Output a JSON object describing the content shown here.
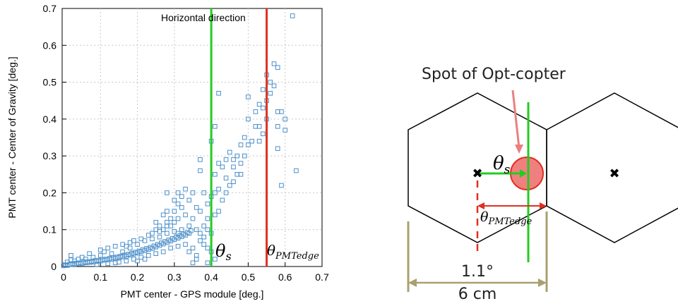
{
  "chart_data": {
    "type": "scatter",
    "title": "Horizontal direction",
    "xlabel": "PMT center - GPS module [deg.]",
    "ylabel": "PMT center - Center of Gravity [deg.]",
    "xlim": [
      -0.02,
      0.7
    ],
    "ylim": [
      0,
      0.7
    ],
    "xticks": [
      "0",
      "0.1",
      "0.2",
      "0.3",
      "0.4",
      "0.5",
      "0.6",
      "0.7"
    ],
    "yticks": [
      "0",
      "0.1",
      "0.2",
      "0.3",
      "0.4",
      "0.5",
      "0.6",
      "0.7"
    ],
    "grid": true,
    "marker": "open-square",
    "marker_color": "#4a8fc9",
    "vlines": [
      {
        "x": 0.4,
        "color": "#22cc22",
        "label": "θs"
      },
      {
        "x": 0.55,
        "color": "#e03020",
        "label": "θPMTedge"
      }
    ],
    "points": [
      [
        0.0,
        0.002
      ],
      [
        0.005,
        0.004
      ],
      [
        0.01,
        0.003
      ],
      [
        0.015,
        0.006
      ],
      [
        0.02,
        0.005
      ],
      [
        0.025,
        0.008
      ],
      [
        0.03,
        0.006
      ],
      [
        0.035,
        0.009
      ],
      [
        0.04,
        0.007
      ],
      [
        0.045,
        0.01
      ],
      [
        0.05,
        0.008
      ],
      [
        0.055,
        0.012
      ],
      [
        0.06,
        0.01
      ],
      [
        0.065,
        0.013
      ],
      [
        0.07,
        0.011
      ],
      [
        0.075,
        0.014
      ],
      [
        0.08,
        0.012
      ],
      [
        0.085,
        0.016
      ],
      [
        0.09,
        0.014
      ],
      [
        0.095,
        0.017
      ],
      [
        0.1,
        0.015
      ],
      [
        0.105,
        0.019
      ],
      [
        0.11,
        0.017
      ],
      [
        0.115,
        0.02
      ],
      [
        0.12,
        0.018
      ],
      [
        0.125,
        0.022
      ],
      [
        0.13,
        0.02
      ],
      [
        0.135,
        0.024
      ],
      [
        0.14,
        0.022
      ],
      [
        0.145,
        0.026
      ],
      [
        0.15,
        0.024
      ],
      [
        0.155,
        0.028
      ],
      [
        0.16,
        0.026
      ],
      [
        0.165,
        0.031
      ],
      [
        0.17,
        0.028
      ],
      [
        0.175,
        0.033
      ],
      [
        0.18,
        0.031
      ],
      [
        0.185,
        0.036
      ],
      [
        0.19,
        0.034
      ],
      [
        0.195,
        0.039
      ],
      [
        0.2,
        0.037
      ],
      [
        0.205,
        0.042
      ],
      [
        0.21,
        0.04
      ],
      [
        0.215,
        0.046
      ],
      [
        0.22,
        0.043
      ],
      [
        0.225,
        0.049
      ],
      [
        0.23,
        0.046
      ],
      [
        0.235,
        0.052
      ],
      [
        0.24,
        0.049
      ],
      [
        0.245,
        0.056
      ],
      [
        0.25,
        0.053
      ],
      [
        0.255,
        0.06
      ],
      [
        0.26,
        0.057
      ],
      [
        0.265,
        0.064
      ],
      [
        0.27,
        0.061
      ],
      [
        0.275,
        0.068
      ],
      [
        0.28,
        0.065
      ],
      [
        0.285,
        0.072
      ],
      [
        0.29,
        0.069
      ],
      [
        0.295,
        0.076
      ],
      [
        0.3,
        0.073
      ],
      [
        0.305,
        0.08
      ],
      [
        0.31,
        0.077
      ],
      [
        0.315,
        0.084
      ],
      [
        0.32,
        0.081
      ],
      [
        0.325,
        0.088
      ],
      [
        0.33,
        0.085
      ],
      [
        0.335,
        0.092
      ],
      [
        0.34,
        0.09
      ],
      [
        0.345,
        0.097
      ],
      [
        0.01,
        0.012
      ],
      [
        0.02,
        0.018
      ],
      [
        0.03,
        0.015
      ],
      [
        0.04,
        0.02
      ],
      [
        0.06,
        0.02
      ],
      [
        0.08,
        0.025
      ],
      [
        0.09,
        0.005
      ],
      [
        0.1,
        0.03
      ],
      [
        0.12,
        0.008
      ],
      [
        0.13,
        0.035
      ],
      [
        0.14,
        0.01
      ],
      [
        0.16,
        0.04
      ],
      [
        0.17,
        0.015
      ],
      [
        0.18,
        0.05
      ],
      [
        0.19,
        0.02
      ],
      [
        0.2,
        0.06
      ],
      [
        0.21,
        0.025
      ],
      [
        0.22,
        0.07
      ],
      [
        0.23,
        0.03
      ],
      [
        0.24,
        0.075
      ],
      [
        0.25,
        0.035
      ],
      [
        0.26,
        0.08
      ],
      [
        0.27,
        0.04
      ],
      [
        0.28,
        0.09
      ],
      [
        0.29,
        0.05
      ],
      [
        0.3,
        0.095
      ],
      [
        0.31,
        0.055
      ],
      [
        0.32,
        0.1
      ],
      [
        0.33,
        0.06
      ],
      [
        0.34,
        0.11
      ],
      [
        0.02,
        0.03
      ],
      [
        0.05,
        0.025
      ],
      [
        0.07,
        0.035
      ],
      [
        0.11,
        0.04
      ],
      [
        0.15,
        0.012
      ],
      [
        0.17,
        0.055
      ],
      [
        0.2,
        0.015
      ],
      [
        0.22,
        0.02
      ],
      [
        0.24,
        0.09
      ],
      [
        0.26,
        0.095
      ],
      [
        0.27,
        0.1
      ],
      [
        0.28,
        0.11
      ],
      [
        0.3,
        0.12
      ],
      [
        0.31,
        0.13
      ],
      [
        0.33,
        0.14
      ],
      [
        0.35,
        0.13
      ],
      [
        0.1,
        0.045
      ],
      [
        0.12,
        0.05
      ],
      [
        0.14,
        0.055
      ],
      [
        0.16,
        0.06
      ],
      [
        0.18,
        0.065
      ],
      [
        0.19,
        0.07
      ],
      [
        0.21,
        0.075
      ],
      [
        0.23,
        0.085
      ],
      [
        0.25,
        0.1
      ],
      [
        0.26,
        0.11
      ],
      [
        0.28,
        0.12
      ],
      [
        0.29,
        0.13
      ],
      [
        0.3,
        0.15
      ],
      [
        0.31,
        0.17
      ],
      [
        0.32,
        0.16
      ],
      [
        0.34,
        0.18
      ],
      [
        0.25,
        0.12
      ],
      [
        0.27,
        0.14
      ],
      [
        0.28,
        0.2
      ],
      [
        0.3,
        0.18
      ],
      [
        0.31,
        0.2
      ],
      [
        0.32,
        0.19
      ],
      [
        0.33,
        0.21
      ],
      [
        0.35,
        0.2
      ],
      [
        0.36,
        0.16
      ],
      [
        0.37,
        0.15
      ],
      [
        0.38,
        0.2
      ],
      [
        0.39,
        0.13
      ],
      [
        0.39,
        0.1
      ],
      [
        0.38,
        0.11
      ],
      [
        0.37,
        0.09
      ],
      [
        0.36,
        0.1
      ],
      [
        0.35,
        0.05
      ],
      [
        0.34,
        0.04
      ],
      [
        0.36,
        0.03
      ],
      [
        0.38,
        0.06
      ],
      [
        0.38,
        0.08
      ],
      [
        0.4,
        0.09
      ],
      [
        0.39,
        0.17
      ],
      [
        0.4,
        0.19
      ],
      [
        0.41,
        0.2
      ],
      [
        0.41,
        0.14
      ],
      [
        0.42,
        0.15
      ],
      [
        0.42,
        0.21
      ],
      [
        0.43,
        0.18
      ],
      [
        0.44,
        0.2
      ],
      [
        0.44,
        0.24
      ],
      [
        0.45,
        0.22
      ],
      [
        0.46,
        0.23
      ],
      [
        0.46,
        0.27
      ],
      [
        0.47,
        0.25
      ],
      [
        0.47,
        0.3
      ],
      [
        0.48,
        0.28
      ],
      [
        0.48,
        0.33
      ],
      [
        0.49,
        0.3
      ],
      [
        0.49,
        0.35
      ],
      [
        0.5,
        0.33
      ],
      [
        0.51,
        0.34
      ],
      [
        0.5,
        0.4
      ],
      [
        0.52,
        0.38
      ],
      [
        0.53,
        0.44
      ],
      [
        0.54,
        0.43
      ],
      [
        0.54,
        0.48
      ],
      [
        0.55,
        0.45
      ],
      [
        0.55,
        0.52
      ],
      [
        0.56,
        0.47
      ],
      [
        0.56,
        0.5
      ],
      [
        0.57,
        0.49
      ],
      [
        0.57,
        0.55
      ],
      [
        0.58,
        0.54
      ],
      [
        0.58,
        0.38
      ],
      [
        0.58,
        0.32
      ],
      [
        0.58,
        0.42
      ],
      [
        0.59,
        0.22
      ],
      [
        0.6,
        0.4
      ],
      [
        0.63,
        0.26
      ],
      [
        0.62,
        0.68
      ],
      [
        0.53,
        0.38
      ],
      [
        0.52,
        0.42
      ],
      [
        0.5,
        0.46
      ],
      [
        0.42,
        0.47
      ],
      [
        0.4,
        0.34
      ],
      [
        0.41,
        0.38
      ],
      [
        0.41,
        0.25
      ],
      [
        0.37,
        0.07
      ],
      [
        0.39,
        0.05
      ],
      [
        0.36,
        0.02
      ],
      [
        0.41,
        0.02
      ],
      [
        0.37,
        0.29
      ],
      [
        0.37,
        0.26
      ],
      [
        0.28,
        0.15
      ],
      [
        0.29,
        0.11
      ],
      [
        0.31,
        0.09
      ],
      [
        0.43,
        0.27
      ],
      [
        0.45,
        0.31
      ],
      [
        0.48,
        0.25
      ],
      [
        0.42,
        0.28
      ],
      [
        0.44,
        0.29
      ],
      [
        0.46,
        0.29
      ],
      [
        0.55,
        0.4
      ],
      [
        0.54,
        0.36
      ],
      [
        0.53,
        0.34
      ],
      [
        0.59,
        0.42
      ],
      [
        0.6,
        0.37
      ],
      [
        0.39,
        0.01
      ],
      [
        0.35,
        0.01
      ],
      [
        0.4,
        0.04
      ]
    ]
  },
  "diagram": {
    "spot_label": "Spot of Opt-copter",
    "theta_s": "θ",
    "theta_s_sub": "s",
    "theta_edge": "θ",
    "theta_edge_sub": "PMTedge",
    "angle_label": "1.1°",
    "distance_label": "6 cm",
    "center_mark": "✖",
    "colors": {
      "green": "#22cc22",
      "red": "#e03020",
      "spot_fill": "#f08080",
      "spot_stroke": "#e03020",
      "measure": "#a8a070"
    }
  }
}
